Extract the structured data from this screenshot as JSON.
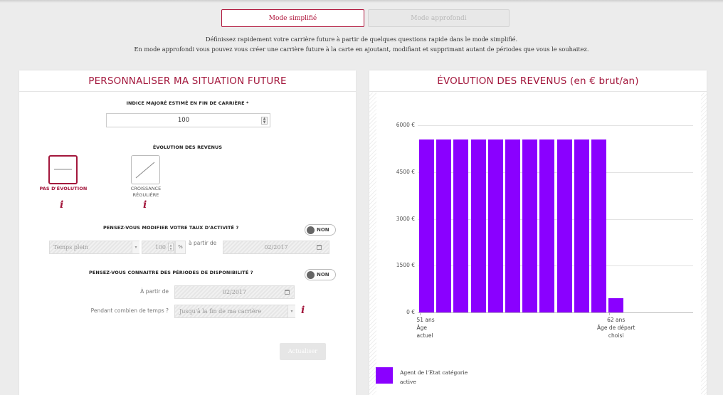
{
  "modes": {
    "simple": "Mode simplifié",
    "advanced": "Mode approfondi"
  },
  "intro": {
    "line1": "Définissez rapidement votre carrière future à partir de quelques questions rapide dans le mode simplifié.",
    "line2": "En mode approfondi vous pouvez vous créer une carrière future à la carte en ajoutant, modifiant et supprimant autant de périodes que vous le souhaitez."
  },
  "left": {
    "title": "PERSONNALISER MA SITUATION FUTURE",
    "indice_label": "INDICE MAJORÉ ESTIMÉ EN FIN DE CARRIÈRE *",
    "indice_value": "100",
    "evolution_label": "ÉVOLUTION DES REVENUS",
    "evo_options": [
      {
        "label": "PAS D'ÉVOLUTION",
        "selected": true,
        "icon": "flat-line-icon"
      },
      {
        "label1": "CROISSANCE",
        "label2": "RÉGULIÈRE",
        "selected": false,
        "icon": "rising-line-icon"
      }
    ],
    "info_glyph": "i",
    "activity_question": "PENSEZ-VOUS MODIFIER VOTRE TAUX D'ACTIVITÉ ?",
    "activity_toggle": "NON",
    "activity_type": "Temps plein",
    "activity_percent": "100",
    "percent_sign": "%",
    "a_partir_de_short": "à partir de",
    "activity_date": "02/2017",
    "dispo_question": "PENSEZ-VOUS CONNAITRE DES PÉRIODES DE DISPONIBILITÉ ?",
    "dispo_toggle": "NON",
    "a_partir_de": "À partir de",
    "dispo_date": "02/2017",
    "duration_label": "Pendant combien de temps ?",
    "duration_value": "Jusqu'à la fin de ma carrière",
    "update_button": "Actualiser"
  },
  "right": {
    "title": "ÉVOLUTION DES REVENUS (en € brut/an)",
    "legend_label1": "Agent de l'Etat catégorie",
    "legend_label2": "active",
    "legend_color": "#8a00ff"
  },
  "chart_data": {
    "type": "bar",
    "title": "ÉVOLUTION DES REVENUS (en € brut/an)",
    "y_ticks": [
      "6000 €",
      "4500 €",
      "3000 €",
      "1500 €",
      "0 €"
    ],
    "ylim": [
      0,
      6000
    ],
    "x_labels": [
      {
        "lines": [
          "51 ans",
          "Âge",
          "actuel"
        ]
      },
      {
        "lines": [
          "62 ans",
          "Âge de départ",
          "choisi"
        ]
      }
    ],
    "series": [
      {
        "name": "Agent de l'Etat catégorie active",
        "color": "#8a00ff",
        "values": [
          5550,
          5550,
          5550,
          5550,
          5550,
          5550,
          5550,
          5550,
          5550,
          5550,
          5550,
          450
        ]
      }
    ]
  }
}
